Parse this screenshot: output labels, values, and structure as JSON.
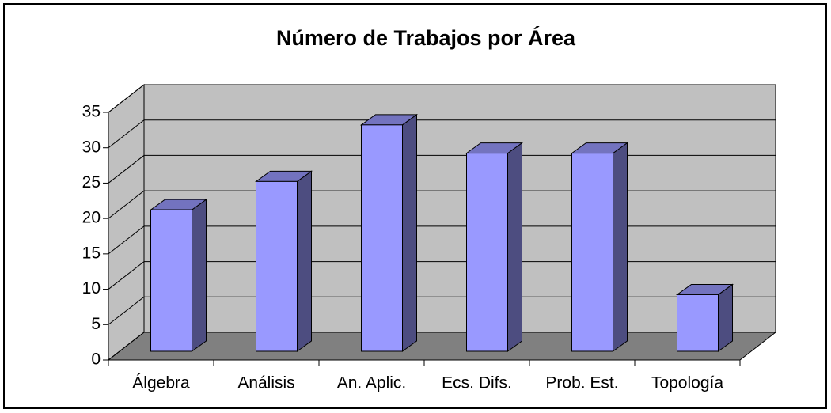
{
  "chart_data": {
    "type": "bar",
    "title": "Número de Trabajos por Área",
    "categories": [
      "Álgebra",
      "Análisis",
      "An. Aplic.",
      "Ecs. Difs.",
      "Prob. Est.",
      "Topología"
    ],
    "values": [
      20,
      24,
      32,
      28,
      28,
      8
    ],
    "color": "#9999ff",
    "ylim": [
      0,
      35
    ],
    "yticks": [
      0,
      5,
      10,
      15,
      20,
      25,
      30,
      35
    ],
    "grid": true
  }
}
